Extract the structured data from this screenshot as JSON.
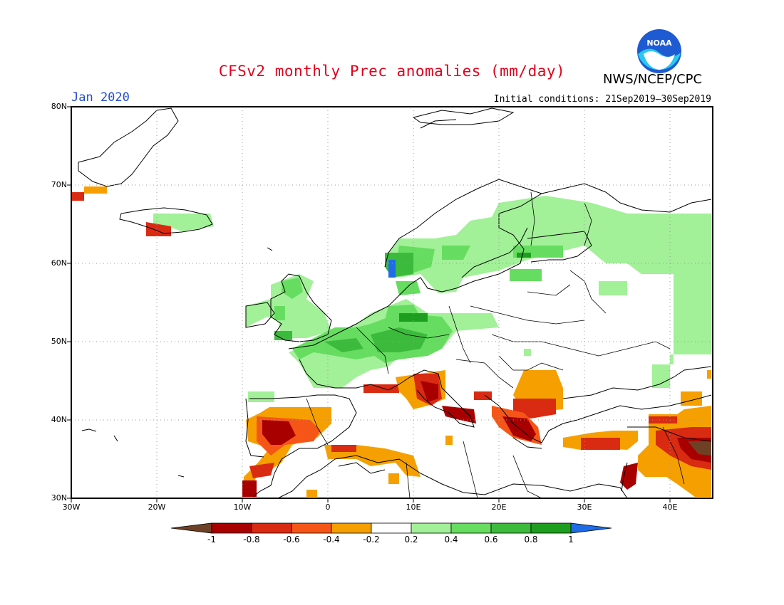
{
  "header": {
    "title": "CFSv2 monthly Prec anomalies (mm/day)",
    "org": "NWS/NCEP/CPC",
    "month": "Jan 2020",
    "initial_conditions": "Initial conditions: 21Sep2019–30Sep2019",
    "logo_text": "NOAA"
  },
  "map": {
    "lon_range": [
      -30,
      45
    ],
    "lat_range": [
      30,
      80
    ],
    "lat_labels": [
      "80N",
      "70N",
      "60N",
      "50N",
      "40N",
      "30N"
    ],
    "lon_labels": [
      "30W",
      "20W",
      "10W",
      "0",
      "10E",
      "20E",
      "30E",
      "40E"
    ],
    "grid": "dotted"
  },
  "colorbar": {
    "labels": [
      "-1",
      "-0.8",
      "-0.6",
      "-0.4",
      "-0.2",
      "0.2",
      "0.4",
      "0.6",
      "0.8",
      "1"
    ],
    "colors": [
      "#6e4126",
      "#a80000",
      "#d92a12",
      "#f55617",
      "#f5a000",
      "#ffffff",
      "#a2f098",
      "#66dd60",
      "#3cba3c",
      "#1e9e1e",
      "#1e6ce6"
    ]
  },
  "colors": {
    "title_red": "#e0001b",
    "month_blue": "#1f4bd6",
    "noaa_blue": "#1e5ad2",
    "noaa_cyan": "#28c8f0"
  }
}
